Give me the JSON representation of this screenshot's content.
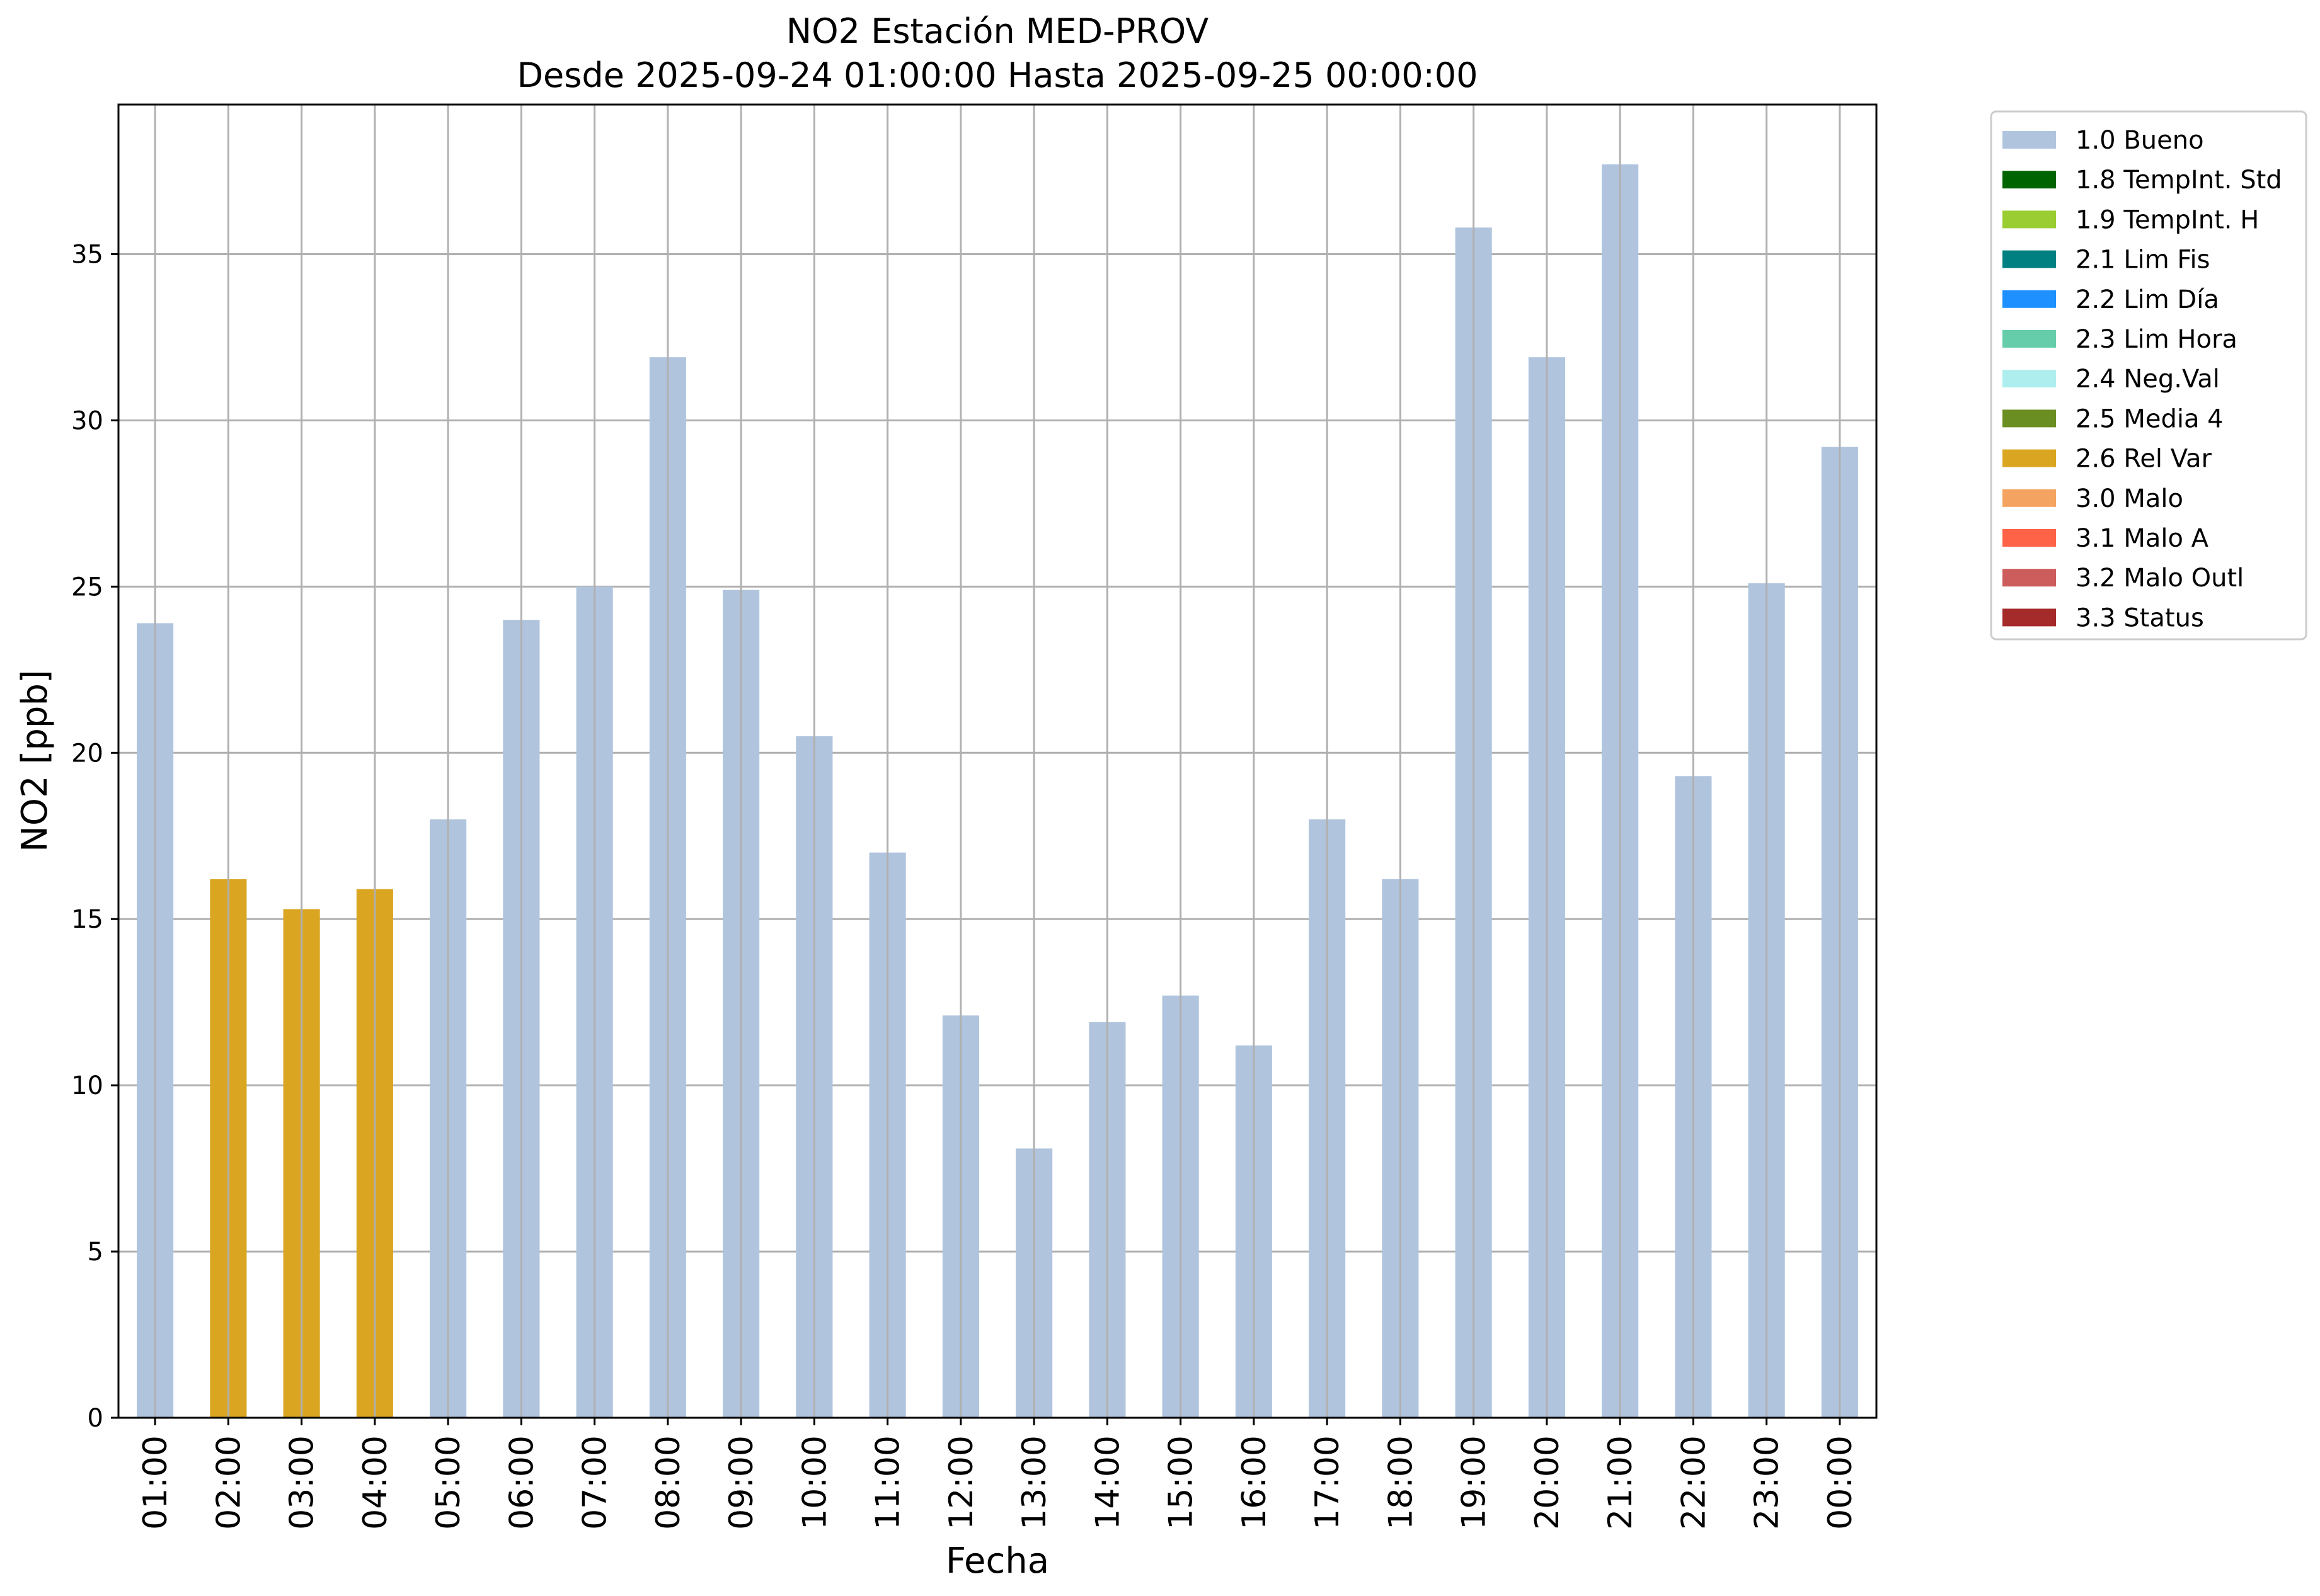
{
  "chart_data": {
    "type": "bar",
    "title": "NO2 Estación MED-PROV",
    "subtitle": "Desde 2025-09-24 01:00:00 Hasta 2025-09-25 00:00:00",
    "xlabel": "Fecha",
    "ylabel": "NO2 [ppb]",
    "ylim": [
      0,
      39.5
    ],
    "yticks": [
      0,
      5,
      10,
      15,
      20,
      25,
      30,
      35
    ],
    "grid": true,
    "legend_position": "outside-top-right",
    "categories": [
      "01:00",
      "02:00",
      "03:00",
      "04:00",
      "05:00",
      "06:00",
      "07:00",
      "08:00",
      "09:00",
      "10:00",
      "11:00",
      "12:00",
      "13:00",
      "14:00",
      "15:00",
      "16:00",
      "17:00",
      "18:00",
      "19:00",
      "20:00",
      "21:00",
      "22:00",
      "23:00",
      "00:00"
    ],
    "values": [
      23.9,
      16.2,
      15.3,
      15.9,
      18.0,
      24.0,
      25.0,
      31.9,
      24.9,
      20.5,
      17.0,
      12.1,
      8.1,
      11.9,
      12.7,
      11.2,
      18.0,
      16.2,
      35.8,
      31.9,
      37.7,
      19.3,
      25.1,
      29.2
    ],
    "flags": [
      "1.0 Bueno",
      "2.6 Rel Var",
      "2.6 Rel Var",
      "2.6 Rel Var",
      "1.0 Bueno",
      "1.0 Bueno",
      "1.0 Bueno",
      "1.0 Bueno",
      "1.0 Bueno",
      "1.0 Bueno",
      "1.0 Bueno",
      "1.0 Bueno",
      "1.0 Bueno",
      "1.0 Bueno",
      "1.0 Bueno",
      "1.0 Bueno",
      "1.0 Bueno",
      "1.0 Bueno",
      "1.0 Bueno",
      "1.0 Bueno",
      "1.0 Bueno",
      "1.0 Bueno",
      "1.0 Bueno",
      "1.0 Bueno"
    ],
    "legend": [
      {
        "label": "1.0 Bueno",
        "color": "#b0c4de"
      },
      {
        "label": "1.8 TempInt. Std",
        "color": "#006400"
      },
      {
        "label": "1.9 TempInt. H",
        "color": "#9acd32"
      },
      {
        "label": "2.1 Lim Fis",
        "color": "#008080"
      },
      {
        "label": "2.2 Lim Día",
        "color": "#1e90ff"
      },
      {
        "label": "2.3 Lim Hora",
        "color": "#66cdaa"
      },
      {
        "label": "2.4 Neg.Val",
        "color": "#afeeee"
      },
      {
        "label": "2.5 Media 4",
        "color": "#6b8e23"
      },
      {
        "label": "2.6 Rel Var",
        "color": "#daa520"
      },
      {
        "label": "3.0 Malo",
        "color": "#f4a460"
      },
      {
        "label": "3.1 Malo A",
        "color": "#ff6347"
      },
      {
        "label": "3.2 Malo Outl",
        "color": "#cd5c5c"
      },
      {
        "label": "3.3 Status",
        "color": "#a52a2a"
      }
    ]
  }
}
